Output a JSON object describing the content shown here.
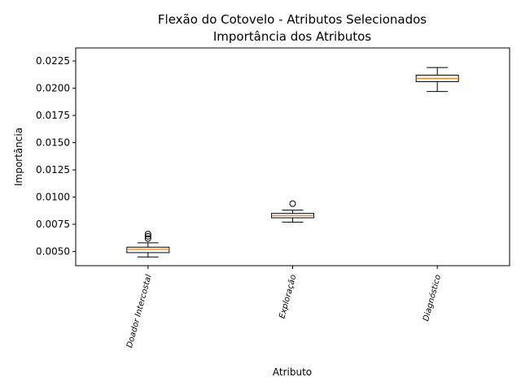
{
  "chart_data": {
    "type": "box",
    "title_line1": "Flexão do Cotovelo - Atributos Selecionados",
    "title_line2": "Importância dos Atributos",
    "xlabel": "Atributo",
    "ylabel": "Importância",
    "ylim": [
      0.0037,
      0.0237
    ],
    "yticks": [
      "0.0050",
      "0.0075",
      "0.0100",
      "0.0125",
      "0.0150",
      "0.0175",
      "0.0200",
      "0.0225"
    ],
    "ytick_values": [
      0.005,
      0.0075,
      0.01,
      0.0125,
      0.015,
      0.0175,
      0.02,
      0.0225
    ],
    "grid": false,
    "categories": [
      "Doador Intercostal",
      "Exploração",
      "Diagnóstico"
    ],
    "boxes": [
      {
        "whisker_low": 0.0045,
        "q1": 0.0049,
        "median": 0.0052,
        "q3": 0.0054,
        "whisker_high": 0.0058,
        "outliers": [
          0.0062,
          0.0064,
          0.0066
        ]
      },
      {
        "whisker_low": 0.0077,
        "q1": 0.0081,
        "median": 0.0083,
        "q3": 0.0085,
        "whisker_high": 0.0088,
        "outliers": [
          0.0094
        ]
      },
      {
        "whisker_low": 0.0197,
        "q1": 0.0206,
        "median": 0.0209,
        "q3": 0.0212,
        "whisker_high": 0.0219,
        "outliers": []
      }
    ],
    "colors": {
      "box": "#000000",
      "median": "#ff7f0e",
      "background": "#ffffff"
    }
  }
}
